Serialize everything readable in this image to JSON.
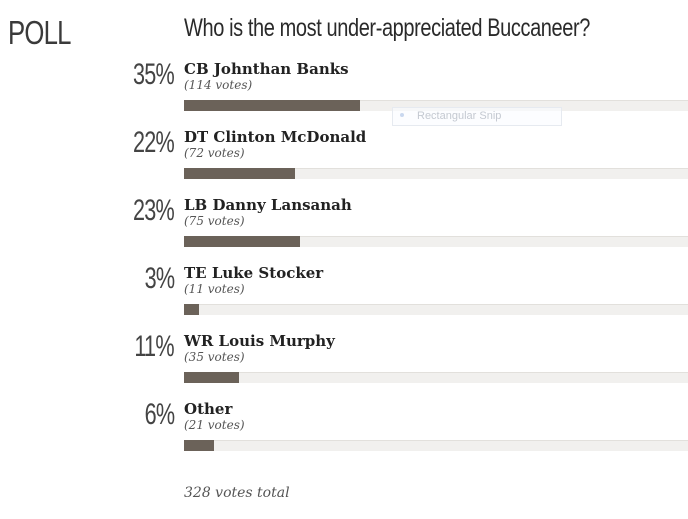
{
  "poll": {
    "label": "POLL",
    "question": "Who is the most under-appreciated Buccaneer?",
    "total": "328 votes total",
    "bar_color": "#6b6259",
    "track_color": "#f1f0ee",
    "options": [
      {
        "percent_label": "35%",
        "name": "CB Johnthan Banks",
        "votes": "(114 votes)",
        "fraction": 0.35
      },
      {
        "percent_label": "22%",
        "name": "DT Clinton McDonald",
        "votes": "(72 votes)",
        "fraction": 0.22
      },
      {
        "percent_label": "23%",
        "name": "LB Danny Lansanah",
        "votes": "(75 votes)",
        "fraction": 0.23
      },
      {
        "percent_label": "3%",
        "name": "TE Luke Stocker",
        "votes": "(11 votes)",
        "fraction": 0.03
      },
      {
        "percent_label": "11%",
        "name": "WR Louis Murphy",
        "votes": "(35 votes)",
        "fraction": 0.11
      },
      {
        "percent_label": "6%",
        "name": "Other",
        "votes": "(21 votes)",
        "fraction": 0.06
      }
    ]
  },
  "overlay": {
    "snip_label": "Rectangular Snip"
  }
}
